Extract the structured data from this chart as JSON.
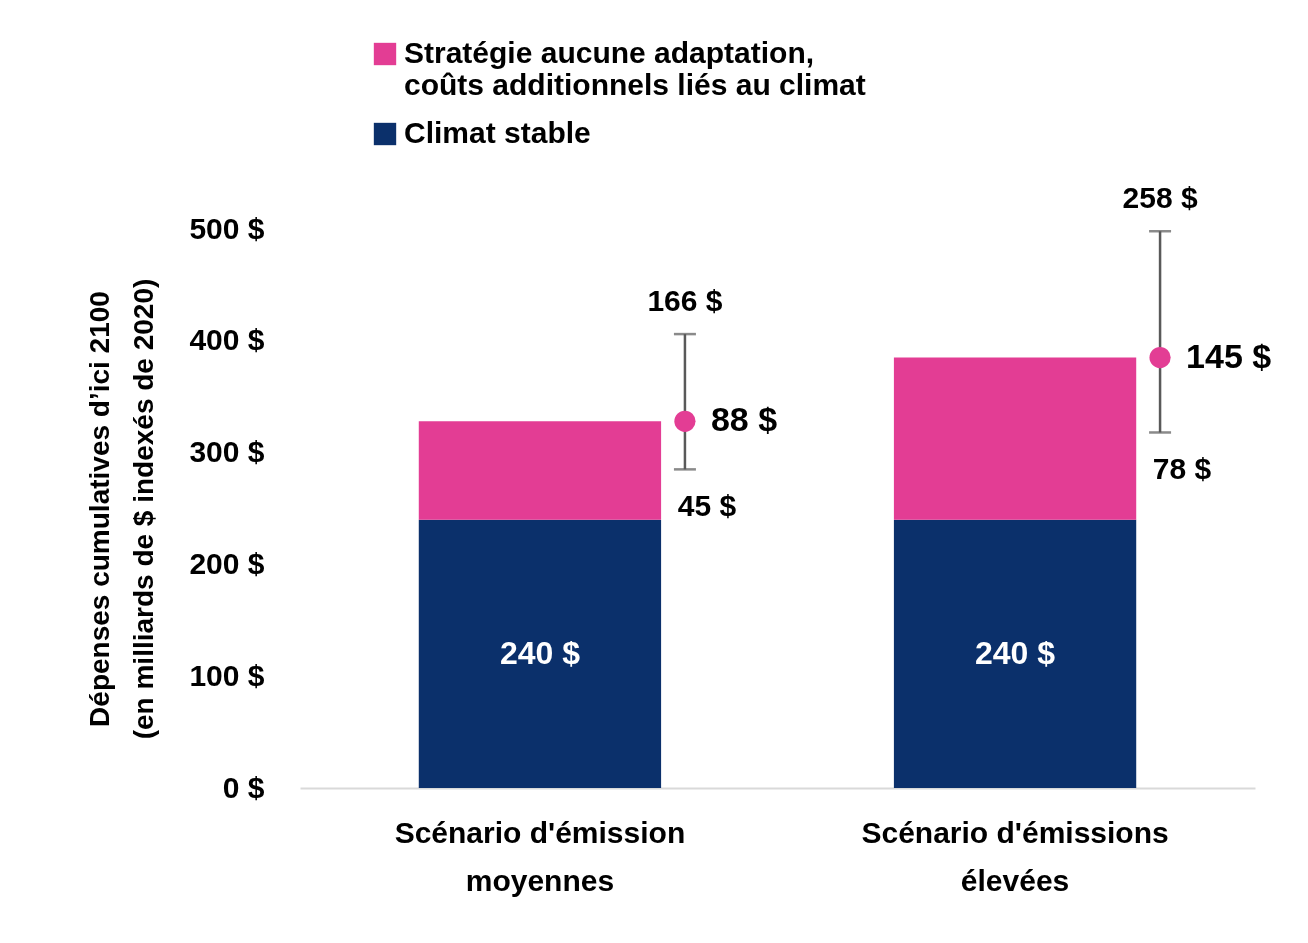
{
  "chart_data": {
    "type": "bar",
    "stacked": true,
    "categories": [
      "Scénario d'émission\nmoyennes",
      "Scénario d'émissions\nélevées"
    ],
    "ylabel": "Dépenses cumulatives d’ici 2100\n(en milliards de $ indexés de 2020)",
    "ylim": [
      0,
      500
    ],
    "yticks": [
      {
        "value": 0,
        "label": "0 $"
      },
      {
        "value": 100,
        "label": "100 $"
      },
      {
        "value": 200,
        "label": "200 $"
      },
      {
        "value": 300,
        "label": "300 $"
      },
      {
        "value": 400,
        "label": "400 $"
      },
      {
        "value": 500,
        "label": "500 $"
      }
    ],
    "series": [
      {
        "name": "Climat stable",
        "color": "#0b306b",
        "values": [
          240,
          240
        ],
        "value_labels": [
          "240 $",
          "240 $"
        ]
      },
      {
        "name": "Stratégie aucune adaptation,\ncoûts additionnels liés au climat",
        "color": "#e33d94",
        "values": [
          88,
          145
        ]
      },
      {
        "type": "scatter",
        "marker": "circle",
        "color": "#e33d94",
        "values": [
          328,
          385
        ],
        "errors": [
          [
            285,
            406
          ],
          [
            318,
            498
          ]
        ]
      }
    ],
    "annotations": [
      "88 $",
      "166 $",
      "45 $",
      "145 $",
      "258 $",
      "78 $"
    ],
    "legend": "top left",
    "grid": false
  }
}
